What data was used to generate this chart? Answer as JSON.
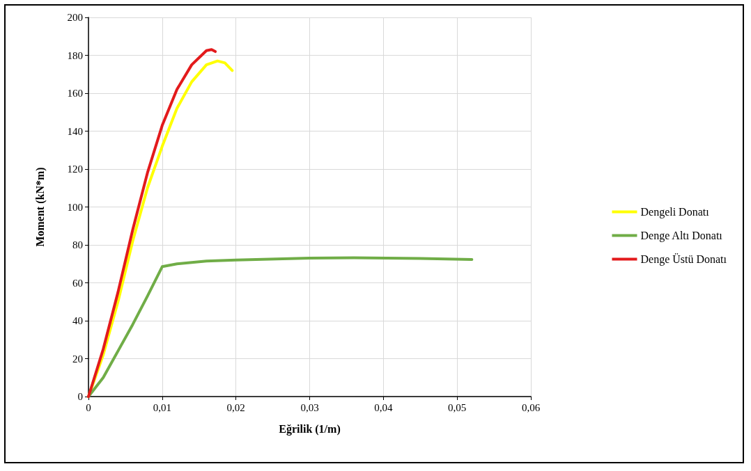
{
  "chart_data": {
    "type": "line",
    "xlabel": "Eğrilik (1/m)",
    "ylabel": "Moment (kN*m)",
    "xlim": [
      0,
      0.06
    ],
    "xticks": [
      {
        "value": 0,
        "label": "0"
      },
      {
        "value": 0.01,
        "label": "0,01"
      },
      {
        "value": 0.02,
        "label": "0,02"
      },
      {
        "value": 0.03,
        "label": "0,03"
      },
      {
        "value": 0.04,
        "label": "0,04"
      },
      {
        "value": 0.05,
        "label": "0,05"
      },
      {
        "value": 0.06,
        "label": "0,06"
      }
    ],
    "ylim": [
      0,
      200
    ],
    "yticks": [
      0,
      20,
      40,
      60,
      80,
      100,
      120,
      140,
      160,
      180,
      200
    ],
    "grid": true,
    "legend": "right",
    "marker": "none",
    "line_style": "solid",
    "series": [
      {
        "name": "Dengeli Donatı",
        "color": "#ffff00",
        "x": [
          0,
          0.002,
          0.004,
          0.006,
          0.008,
          0.01,
          0.012,
          0.014,
          0.016,
          0.0175,
          0.0185,
          0.0195
        ],
        "values": [
          0,
          22,
          50,
          82,
          110,
          132,
          152,
          166,
          175,
          177,
          176,
          172
        ]
      },
      {
        "name": "Denge Altı Donatı",
        "color": "#70ad47",
        "x": [
          0,
          0.002,
          0.004,
          0.006,
          0.008,
          0.01,
          0.012,
          0.016,
          0.02,
          0.03,
          0.036,
          0.045,
          0.052
        ],
        "values": [
          0,
          10,
          24,
          38,
          53,
          68.5,
          70,
          71.5,
          72,
          73,
          73.2,
          72.8,
          72.3
        ]
      },
      {
        "name": "Denge Üstü Donatı",
        "color": "#e31a1c",
        "x": [
          0,
          0.002,
          0.004,
          0.006,
          0.008,
          0.01,
          0.012,
          0.014,
          0.016,
          0.0167,
          0.0172
        ],
        "values": [
          0,
          25,
          55,
          88,
          118,
          143,
          162,
          175,
          182.5,
          183,
          182
        ]
      }
    ]
  }
}
